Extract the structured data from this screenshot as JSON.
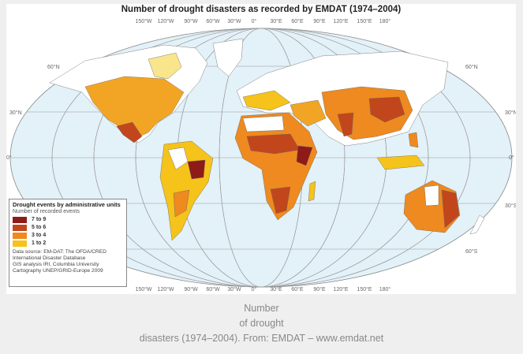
{
  "map": {
    "title": "Number of drought disasters as recorded by EMDAT (1974–2004)",
    "longitude_labels": [
      "150°W",
      "120°W",
      "90°W",
      "60°W",
      "30°W",
      "0°",
      "30°E",
      "60°E",
      "90°E",
      "120°E",
      "150°E",
      "180°"
    ],
    "latitude_labels": [
      "60°N",
      "30°N",
      "0°",
      "30°S",
      "60°S"
    ],
    "ocean_color": "#e3f1f8",
    "legend": {
      "title": "Drought events by administrative units",
      "subtitle": "Number of recorded events",
      "items": [
        {
          "label": "7 to 9",
          "color": "#8e1b17"
        },
        {
          "label": "5 to 6",
          "color": "#c2461c"
        },
        {
          "label": "3 to 4",
          "color": "#ee8a1f"
        },
        {
          "label": "1 to 2",
          "color": "#f5c31a"
        }
      ],
      "source": [
        "Data source: EM-DAT: The OFDA/CRED",
        "International Disaster Database",
        "GIS analysis IRI, Columbia University",
        "Cartography UNEP/GRID-Europe 2009"
      ]
    }
  },
  "caption": {
    "lines": [
      "Number",
      "of drought",
      "disasters (1974–2004). From: EMDAT – www.emdat.net"
    ]
  }
}
